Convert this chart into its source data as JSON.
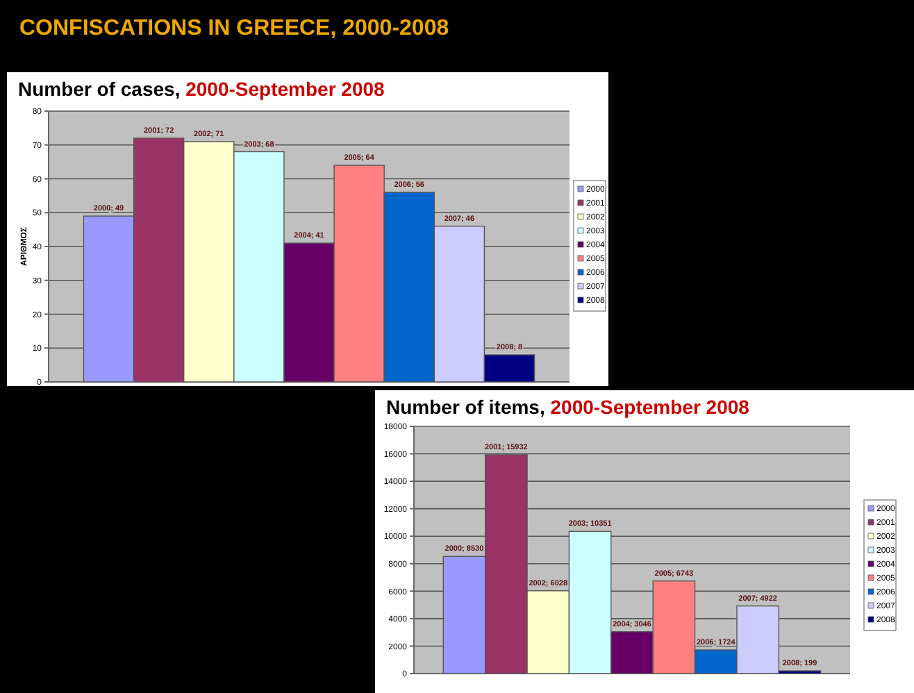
{
  "chart_data": [
    {
      "type": "other",
      "title": "CONFISCATIONS IN GREECE, 2000-2008"
    },
    {
      "type": "bar",
      "title": "Number of cases, 2000-September 2008",
      "ylabel": "ΑΡΙΘΜΟΣ",
      "categories": [
        null
      ],
      "ylim": [
        0,
        80
      ],
      "yticks": [
        0,
        10,
        20,
        30,
        40,
        50,
        60,
        70,
        80
      ],
      "grid": "y",
      "legend": "right",
      "series": [
        {
          "name": "2000",
          "color": "#9999ff",
          "values": [
            49
          ],
          "value_labels": [
            "2000; 49"
          ]
        },
        {
          "name": "2001",
          "color": "#993366",
          "values": [
            72
          ],
          "value_labels": [
            "2001; 72"
          ]
        },
        {
          "name": "2002",
          "color": "#ffffcc",
          "values": [
            71
          ],
          "value_labels": [
            "2002; 71"
          ]
        },
        {
          "name": "2003",
          "color": "#ccffff",
          "values": [
            68
          ],
          "value_labels": [
            "2003; 68"
          ]
        },
        {
          "name": "2004",
          "color": "#660066",
          "values": [
            41
          ],
          "value_labels": [
            "2004; 41"
          ]
        },
        {
          "name": "2005",
          "color": "#ff8080",
          "values": [
            64
          ],
          "value_labels": [
            "2005; 64"
          ]
        },
        {
          "name": "2006",
          "color": "#0066cc",
          "values": [
            56
          ],
          "value_labels": [
            "2006; 56"
          ]
        },
        {
          "name": "2007",
          "color": "#ccccff",
          "values": [
            46
          ],
          "value_labels": [
            "2007; 46"
          ]
        },
        {
          "name": "2008",
          "color": "#000080",
          "values": [
            8
          ],
          "value_labels": [
            "2008; 8"
          ]
        }
      ]
    },
    {
      "type": "bar",
      "title": "Number of items, 2000-September 2008",
      "categories": [
        null
      ],
      "ylim": [
        0,
        18000
      ],
      "yticks": [
        0,
        2000,
        4000,
        6000,
        8000,
        10000,
        12000,
        14000,
        16000,
        18000
      ],
      "grid": "y",
      "legend": "right",
      "series": [
        {
          "name": "2000",
          "color": "#9999ff",
          "values": [
            8530
          ],
          "value_labels": [
            "2000; 8530"
          ]
        },
        {
          "name": "2001",
          "color": "#993366",
          "values": [
            15932
          ],
          "value_labels": [
            "2001; 15932"
          ]
        },
        {
          "name": "2002",
          "color": "#ffffcc",
          "values": [
            6028
          ],
          "value_labels": [
            "2002; 6028"
          ]
        },
        {
          "name": "2003",
          "color": "#ccffff",
          "values": [
            10351
          ],
          "value_labels": [
            "2003; 10351"
          ]
        },
        {
          "name": "2004",
          "color": "#660066",
          "values": [
            3046
          ],
          "value_labels": [
            "2004; 3046"
          ]
        },
        {
          "name": "2005",
          "color": "#ff8080",
          "values": [
            6743
          ],
          "value_labels": [
            "2005; 6743"
          ]
        },
        {
          "name": "2006",
          "color": "#0066cc",
          "values": [
            1724
          ],
          "value_labels": [
            "2006; 1724"
          ]
        },
        {
          "name": "2007",
          "color": "#ccccff",
          "values": [
            4922
          ],
          "value_labels": [
            "2007; 4922"
          ]
        },
        {
          "name": "2008",
          "color": "#000080",
          "values": [
            199
          ],
          "value_labels": [
            "2008; 199"
          ]
        }
      ]
    }
  ]
}
